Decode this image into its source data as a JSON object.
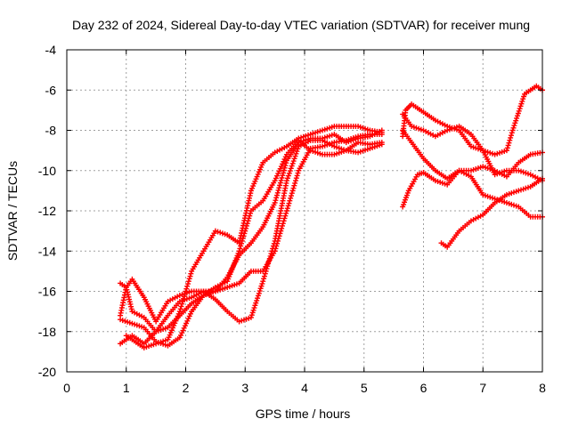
{
  "chart_data": {
    "type": "scatter",
    "title": "Day 232 of 2024, Sidereal Day-to-day VTEC variation (SDTVAR) for receiver mung",
    "xlabel": "GPS time / hours",
    "ylabel": "SDTVAR / TECUs",
    "xlim": [
      0,
      8
    ],
    "ylim": [
      -20,
      -4
    ],
    "x_ticks": [
      0,
      1,
      2,
      3,
      4,
      5,
      6,
      7,
      8
    ],
    "y_ticks": [
      -20,
      -18,
      -16,
      -14,
      -12,
      -10,
      -8,
      -6,
      -4
    ],
    "grid": true,
    "legend": "none",
    "marker": "plus",
    "series_color": "#ff0000",
    "series": [
      {
        "x": [
          0.9,
          1.1,
          1.3,
          1.5,
          1.7,
          1.9,
          2.1,
          2.3,
          2.5,
          2.7,
          2.9,
          3.1,
          3.3,
          3.5,
          3.7,
          3.9,
          4.1,
          4.3,
          4.5,
          4.7,
          4.9,
          5.1,
          5.3
        ],
        "y": [
          -17.4,
          -17.6,
          -17.8,
          -18.5,
          -18.7,
          -18.3,
          -17.0,
          -16.2,
          -15.8,
          -15.5,
          -14.0,
          -12.0,
          -11.5,
          -10.5,
          -9.2,
          -8.5,
          -9.0,
          -9.2,
          -9.2,
          -9.0,
          -9.1,
          -8.9,
          -8.7
        ]
      },
      {
        "x": [
          0.9,
          1.1,
          1.3,
          1.5,
          1.7,
          1.9,
          2.1,
          2.3,
          2.5,
          2.7,
          2.9,
          3.1,
          3.3,
          3.5,
          3.7,
          3.9,
          4.1,
          4.3,
          4.5,
          4.7,
          4.9,
          5.1,
          5.3
        ],
        "y": [
          -18.6,
          -18.2,
          -18.6,
          -18.0,
          -17.8,
          -17.2,
          -16.6,
          -16.2,
          -16.0,
          -15.3,
          -14.2,
          -13.6,
          -12.8,
          -11.6,
          -9.5,
          -8.6,
          -8.4,
          -8.4,
          -8.2,
          -8.6,
          -8.4,
          -8.3,
          -8.0
        ]
      },
      {
        "x": [
          0.9,
          1.0,
          1.1,
          1.3,
          1.5,
          1.7,
          1.9,
          2.1,
          2.3,
          2.5,
          2.7,
          2.9,
          3.1,
          3.3,
          3.5,
          3.7,
          3.9,
          4.1,
          4.3,
          4.5,
          4.7,
          4.9,
          5.1,
          5.3
        ],
        "y": [
          -17.2,
          -15.8,
          -17.0,
          -17.3,
          -18.0,
          -17.2,
          -16.5,
          -16.3,
          -16.0,
          -16.4,
          -17.0,
          -17.5,
          -17.3,
          -15.5,
          -13.5,
          -10.5,
          -8.8,
          -8.5,
          -8.5,
          -8.8,
          -9.0,
          -8.6,
          -8.7,
          -8.6
        ]
      },
      {
        "x": [
          0.9,
          1.0,
          1.1,
          1.3,
          1.5,
          1.7,
          1.9,
          2.1,
          2.3,
          2.5,
          2.7,
          2.9,
          3.1,
          3.3,
          3.5,
          3.7,
          3.9,
          4.1,
          4.3,
          4.5,
          4.7,
          4.9,
          5.1,
          5.3
        ],
        "y": [
          -15.6,
          -15.8,
          -15.4,
          -16.3,
          -17.5,
          -16.5,
          -16.2,
          -16.0,
          -16.0,
          -16.0,
          -15.8,
          -15.6,
          -15.0,
          -15.0,
          -14.0,
          -12.0,
          -10.0,
          -8.9,
          -8.8,
          -8.6,
          -8.5,
          -8.3,
          -8.2,
          -8.2
        ]
      },
      {
        "x": [
          1.0,
          1.1,
          1.3,
          1.5,
          1.7,
          1.9,
          2.1,
          2.3,
          2.5,
          2.7,
          2.9,
          3.1,
          3.3,
          3.5,
          3.7,
          3.9,
          4.1,
          4.3,
          4.5,
          4.7,
          4.9,
          5.1,
          5.3
        ],
        "y": [
          -18.2,
          -18.4,
          -18.8,
          -18.6,
          -18.4,
          -17.0,
          -15.0,
          -14.0,
          -13.0,
          -13.2,
          -13.6,
          -11.0,
          -9.6,
          -9.1,
          -8.8,
          -8.4,
          -8.2,
          -8.0,
          -7.8,
          -7.8,
          -7.8,
          -8.0,
          -8.1
        ]
      },
      {
        "x": [
          5.65,
          5.7,
          5.8,
          5.9,
          6.0,
          6.2,
          6.4,
          6.6,
          6.8,
          7.0,
          7.2,
          7.4,
          7.5,
          7.7,
          7.9,
          8.0
        ],
        "y": [
          -8.3,
          -7.0,
          -6.7,
          -6.9,
          -7.1,
          -7.5,
          -7.8,
          -8.0,
          -8.8,
          -9.0,
          -9.2,
          -9.0,
          -8.0,
          -6.2,
          -5.8,
          -6.0
        ]
      },
      {
        "x": [
          5.65,
          5.8,
          6.0,
          6.2,
          6.4,
          6.6,
          6.8,
          7.0,
          7.2,
          7.4,
          7.6,
          7.8,
          8.0
        ],
        "y": [
          -8.0,
          -8.6,
          -9.4,
          -10.0,
          -10.4,
          -10.0,
          -10.0,
          -9.8,
          -10.0,
          -10.3,
          -9.6,
          -9.2,
          -9.1
        ]
      },
      {
        "x": [
          5.65,
          5.8,
          6.0,
          6.2,
          6.4,
          6.6,
          6.8,
          7.0,
          7.2,
          7.4,
          7.6,
          7.8,
          8.0
        ],
        "y": [
          -7.2,
          -7.8,
          -8.0,
          -8.3,
          -8.0,
          -7.8,
          -8.2,
          -9.0,
          -10.2,
          -10.0,
          -10.0,
          -10.2,
          -10.5
        ]
      },
      {
        "x": [
          5.65,
          5.75,
          5.9,
          6.0,
          6.2,
          6.4,
          6.6,
          6.8,
          7.0,
          7.2,
          7.4,
          7.6,
          7.8,
          8.0
        ],
        "y": [
          -11.8,
          -11.0,
          -10.2,
          -10.1,
          -10.5,
          -10.7,
          -10.0,
          -10.3,
          -11.2,
          -11.4,
          -11.6,
          -11.8,
          -12.3,
          -12.3
        ]
      },
      {
        "x": [
          6.3,
          6.4,
          6.6,
          6.8,
          7.0,
          7.2,
          7.4,
          7.6,
          7.8,
          8.0
        ],
        "y": [
          -13.6,
          -13.8,
          -13.0,
          -12.5,
          -12.2,
          -11.6,
          -11.2,
          -11.0,
          -10.8,
          -10.4
        ]
      }
    ]
  }
}
